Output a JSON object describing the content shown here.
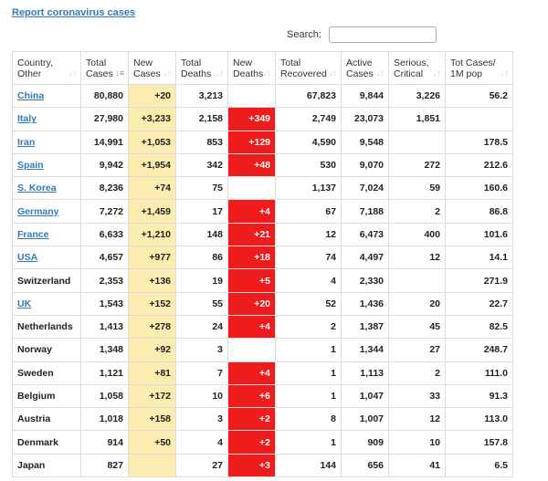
{
  "header": {
    "report_link": "Report coronavirus cases"
  },
  "search": {
    "label": "Search:",
    "value": "",
    "placeholder": ""
  },
  "colors": {
    "link": "#337ab7",
    "new_cases_bg": "#fbedb0",
    "new_deaths_bg": "#ee1c1c"
  },
  "table": {
    "columns": [
      {
        "key": "country",
        "label": "Country, Other",
        "sort_icon": "sort-icon"
      },
      {
        "key": "total_cases",
        "label": "Total Cases",
        "sort_icon": "sort-desc-icon"
      },
      {
        "key": "new_cases",
        "label": "New Cases",
        "sort_icon": "sort-icon"
      },
      {
        "key": "total_deaths",
        "label": "Total Deaths",
        "sort_icon": "sort-icon"
      },
      {
        "key": "new_deaths",
        "label": "New Deaths",
        "sort_icon": "sort-icon"
      },
      {
        "key": "total_recovered",
        "label": "Total Recovered",
        "sort_icon": "sort-icon"
      },
      {
        "key": "active_cases",
        "label": "Active Cases",
        "sort_icon": "sort-icon"
      },
      {
        "key": "serious_critical",
        "label": "Serious, Critical",
        "sort_icon": "sort-icon"
      },
      {
        "key": "tot_cases_1m",
        "label": "Tot Cases/ 1M pop",
        "sort_icon": "sort-icon"
      }
    ],
    "rows": [
      {
        "country": "China",
        "link": true,
        "total_cases": "80,880",
        "new_cases": "+20",
        "total_deaths": "3,213",
        "new_deaths": "",
        "total_recovered": "67,823",
        "active_cases": "9,844",
        "serious_critical": "3,226",
        "tot_cases_1m": "56.2"
      },
      {
        "country": "Italy",
        "link": true,
        "total_cases": "27,980",
        "new_cases": "+3,233",
        "total_deaths": "2,158",
        "new_deaths": "+349",
        "total_recovered": "2,749",
        "active_cases": "23,073",
        "serious_critical": "1,851",
        "tot_cases_1m": ""
      },
      {
        "country": "Iran",
        "link": true,
        "total_cases": "14,991",
        "new_cases": "+1,053",
        "total_deaths": "853",
        "new_deaths": "+129",
        "total_recovered": "4,590",
        "active_cases": "9,548",
        "serious_critical": "",
        "tot_cases_1m": "178.5"
      },
      {
        "country": "Spain",
        "link": true,
        "total_cases": "9,942",
        "new_cases": "+1,954",
        "total_deaths": "342",
        "new_deaths": "+48",
        "total_recovered": "530",
        "active_cases": "9,070",
        "serious_critical": "272",
        "tot_cases_1m": "212.6"
      },
      {
        "country": "S. Korea",
        "link": true,
        "total_cases": "8,236",
        "new_cases": "+74",
        "total_deaths": "75",
        "new_deaths": "",
        "total_recovered": "1,137",
        "active_cases": "7,024",
        "serious_critical": "59",
        "tot_cases_1m": "160.6"
      },
      {
        "country": "Germany",
        "link": true,
        "total_cases": "7,272",
        "new_cases": "+1,459",
        "total_deaths": "17",
        "new_deaths": "+4",
        "total_recovered": "67",
        "active_cases": "7,188",
        "serious_critical": "2",
        "tot_cases_1m": "86.8"
      },
      {
        "country": "France",
        "link": true,
        "total_cases": "6,633",
        "new_cases": "+1,210",
        "total_deaths": "148",
        "new_deaths": "+21",
        "total_recovered": "12",
        "active_cases": "6,473",
        "serious_critical": "400",
        "tot_cases_1m": "101.6"
      },
      {
        "country": "USA",
        "link": true,
        "total_cases": "4,657",
        "new_cases": "+977",
        "total_deaths": "86",
        "new_deaths": "+18",
        "total_recovered": "74",
        "active_cases": "4,497",
        "serious_critical": "12",
        "tot_cases_1m": "14.1"
      },
      {
        "country": "Switzerland",
        "link": false,
        "total_cases": "2,353",
        "new_cases": "+136",
        "total_deaths": "19",
        "new_deaths": "+5",
        "total_recovered": "4",
        "active_cases": "2,330",
        "serious_critical": "",
        "tot_cases_1m": "271.9"
      },
      {
        "country": "UK",
        "link": true,
        "total_cases": "1,543",
        "new_cases": "+152",
        "total_deaths": "55",
        "new_deaths": "+20",
        "total_recovered": "52",
        "active_cases": "1,436",
        "serious_critical": "20",
        "tot_cases_1m": "22.7"
      },
      {
        "country": "Netherlands",
        "link": false,
        "total_cases": "1,413",
        "new_cases": "+278",
        "total_deaths": "24",
        "new_deaths": "+4",
        "total_recovered": "2",
        "active_cases": "1,387",
        "serious_critical": "45",
        "tot_cases_1m": "82.5"
      },
      {
        "country": "Norway",
        "link": false,
        "total_cases": "1,348",
        "new_cases": "+92",
        "total_deaths": "3",
        "new_deaths": "",
        "total_recovered": "1",
        "active_cases": "1,344",
        "serious_critical": "27",
        "tot_cases_1m": "248.7"
      },
      {
        "country": "Sweden",
        "link": false,
        "total_cases": "1,121",
        "new_cases": "+81",
        "total_deaths": "7",
        "new_deaths": "+4",
        "total_recovered": "1",
        "active_cases": "1,113",
        "serious_critical": "2",
        "tot_cases_1m": "111.0"
      },
      {
        "country": "Belgium",
        "link": false,
        "total_cases": "1,058",
        "new_cases": "+172",
        "total_deaths": "10",
        "new_deaths": "+6",
        "total_recovered": "1",
        "active_cases": "1,047",
        "serious_critical": "33",
        "tot_cases_1m": "91.3"
      },
      {
        "country": "Austria",
        "link": false,
        "total_cases": "1,018",
        "new_cases": "+158",
        "total_deaths": "3",
        "new_deaths": "+2",
        "total_recovered": "8",
        "active_cases": "1,007",
        "serious_critical": "12",
        "tot_cases_1m": "113.0"
      },
      {
        "country": "Denmark",
        "link": false,
        "total_cases": "914",
        "new_cases": "+50",
        "total_deaths": "4",
        "new_deaths": "+2",
        "total_recovered": "1",
        "active_cases": "909",
        "serious_critical": "10",
        "tot_cases_1m": "157.8"
      },
      {
        "country": "Japan",
        "link": false,
        "total_cases": "827",
        "new_cases": "",
        "total_deaths": "27",
        "new_deaths": "+3",
        "total_recovered": "144",
        "active_cases": "656",
        "serious_critical": "41",
        "tot_cases_1m": "6.5"
      }
    ]
  }
}
